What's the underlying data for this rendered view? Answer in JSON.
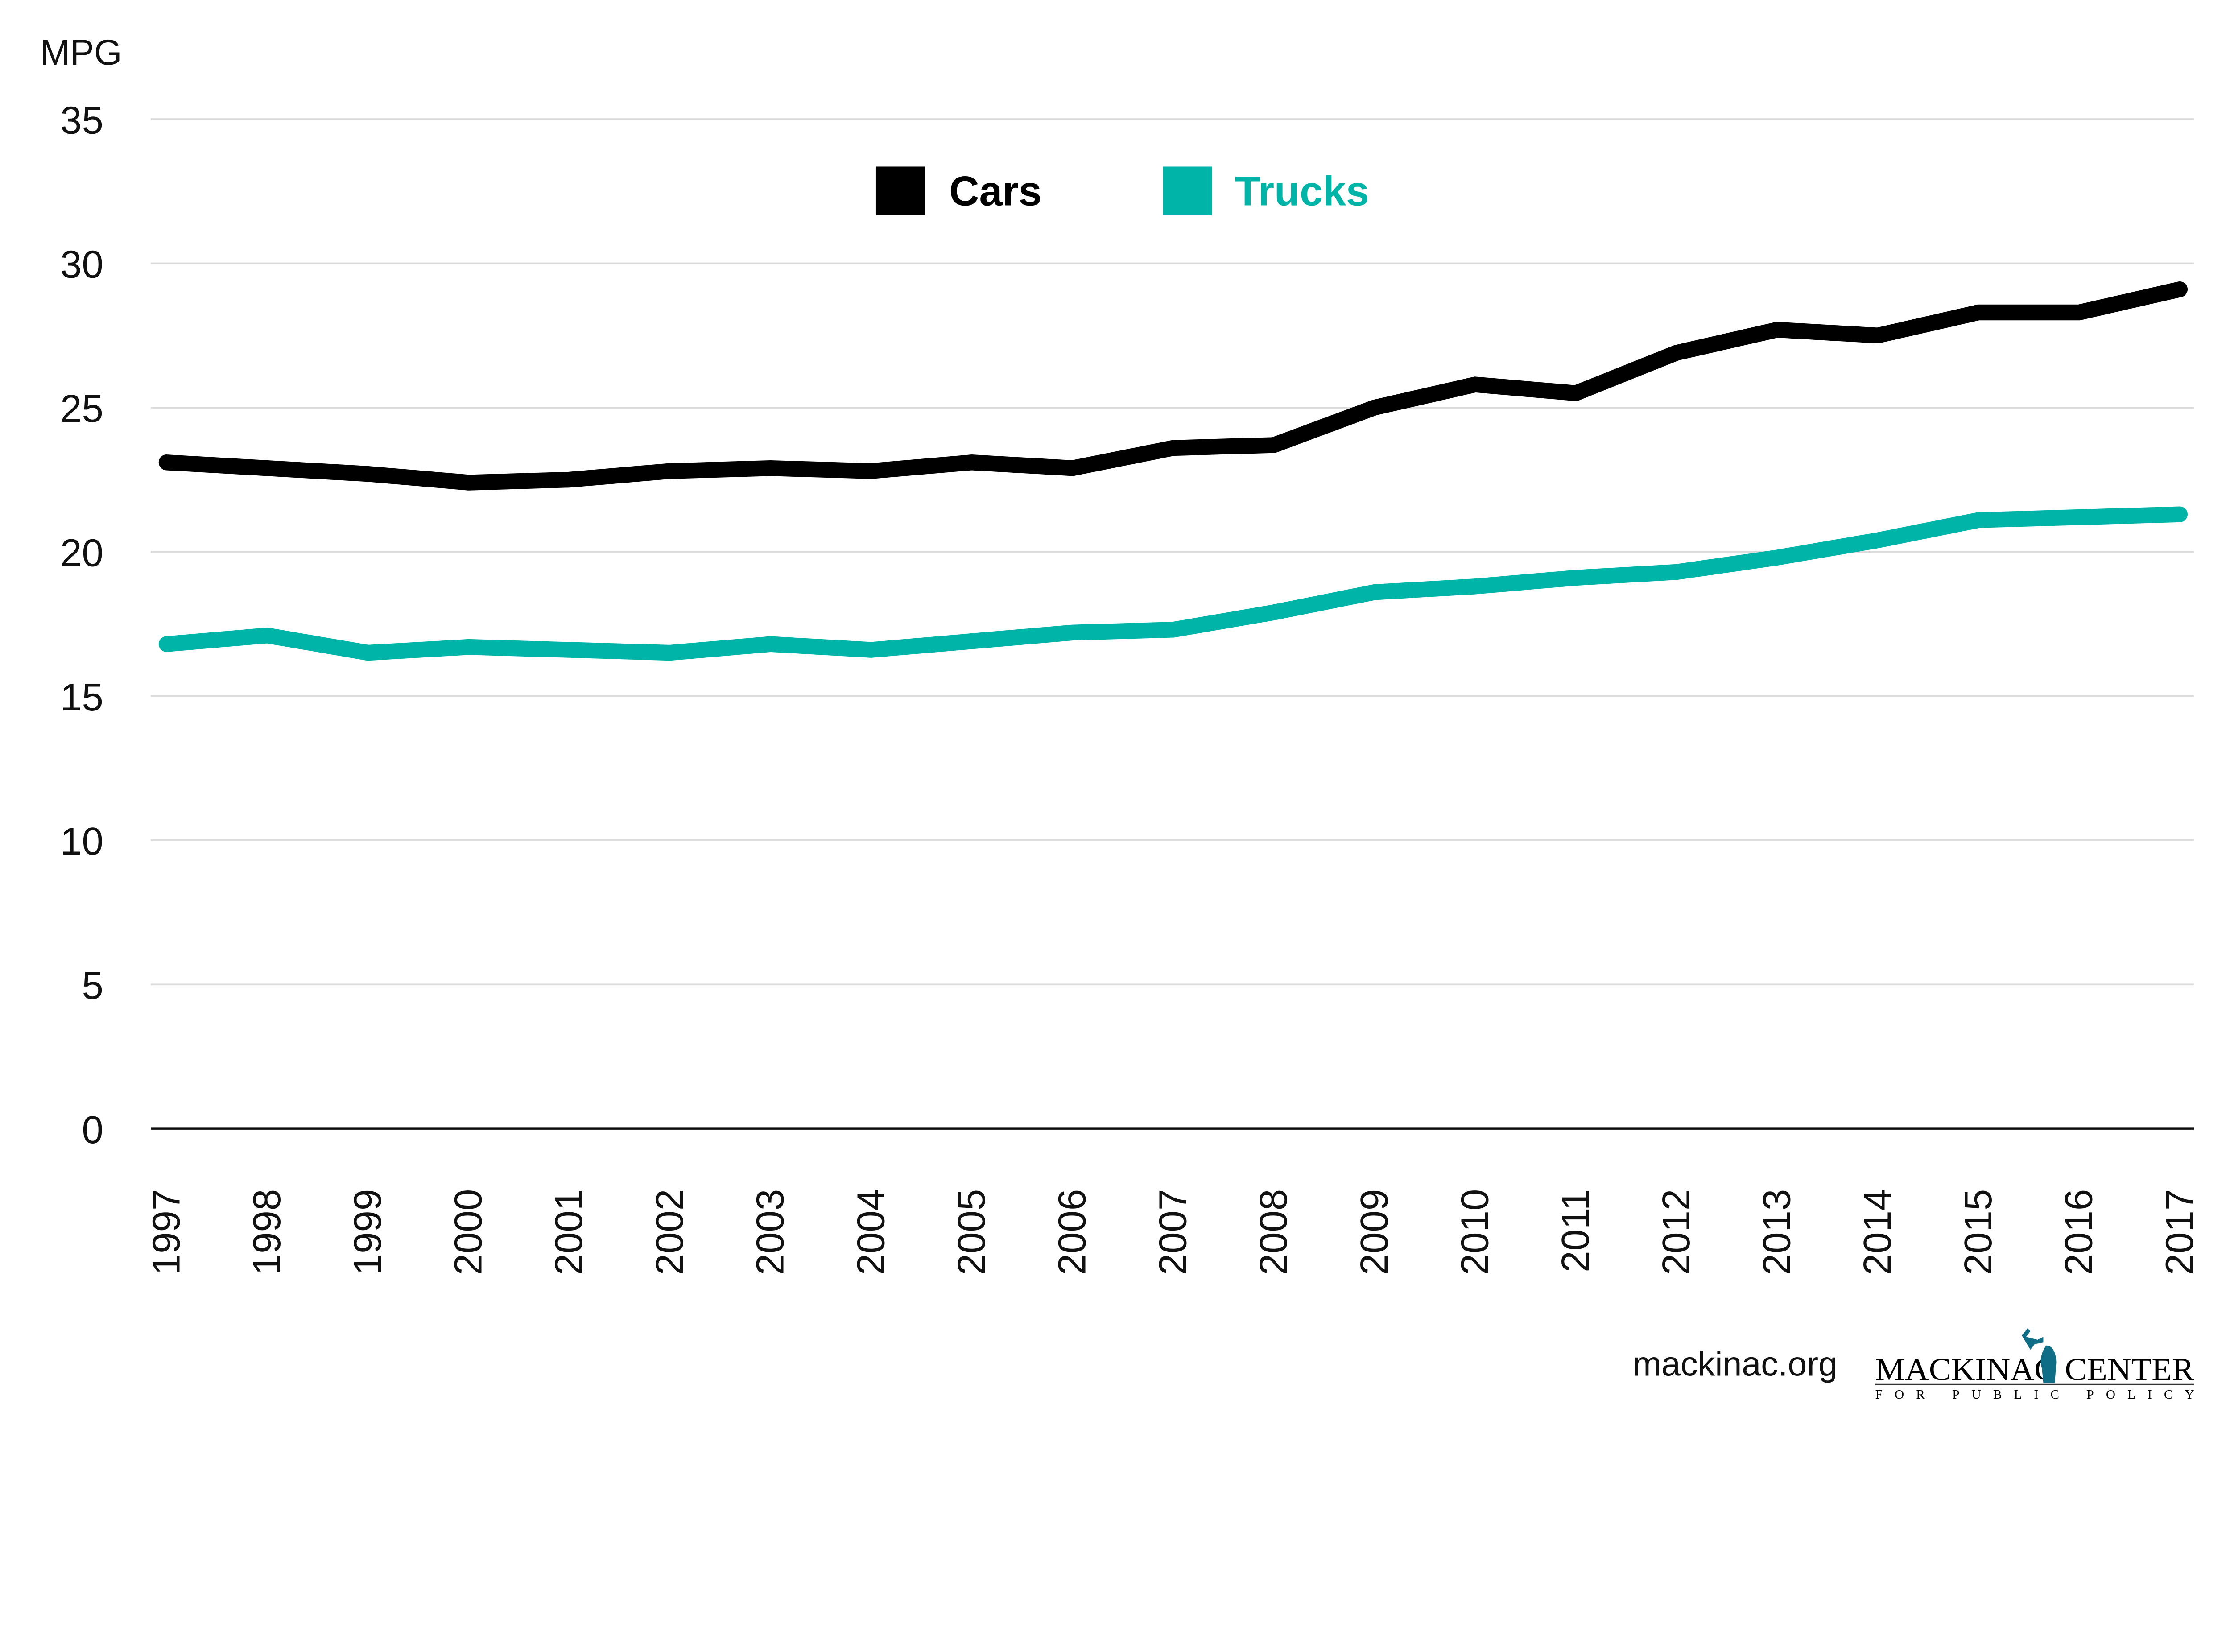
{
  "chart_data": {
    "type": "line",
    "ylabel": "MPG",
    "ylim": [
      0,
      35
    ],
    "yticks": [
      0,
      5,
      10,
      15,
      20,
      25,
      30,
      35
    ],
    "grid": true,
    "legend_placement": "top-center",
    "categories": [
      "1997",
      "1998",
      "1999",
      "2000",
      "2001",
      "2002",
      "2003",
      "2004",
      "2005",
      "2006",
      "2007",
      "2008",
      "2009",
      "2010",
      "2011",
      "2012",
      "2013",
      "2014",
      "2015",
      "2016",
      "2017"
    ],
    "series": [
      {
        "name": "Cars",
        "color": "#000000",
        "values": [
          23.1,
          22.9,
          22.7,
          22.4,
          22.5,
          22.8,
          22.9,
          22.8,
          23.1,
          22.9,
          23.6,
          23.7,
          25.0,
          25.8,
          25.5,
          26.9,
          27.7,
          27.5,
          28.3,
          28.3,
          29.1
        ]
      },
      {
        "name": "Trucks",
        "color": "#00b5a8",
        "values": [
          16.8,
          17.1,
          16.5,
          16.7,
          16.6,
          16.5,
          16.8,
          16.6,
          16.9,
          17.2,
          17.3,
          17.9,
          18.6,
          18.8,
          19.1,
          19.3,
          19.8,
          20.4,
          21.1,
          21.2,
          21.3
        ]
      }
    ]
  },
  "footer": {
    "website": "mackinac.org",
    "logo_text": "MACKINAC CENTER",
    "logo_subtext": "FOR PUBLIC POLICY",
    "logo_color": "#0f6e85"
  }
}
